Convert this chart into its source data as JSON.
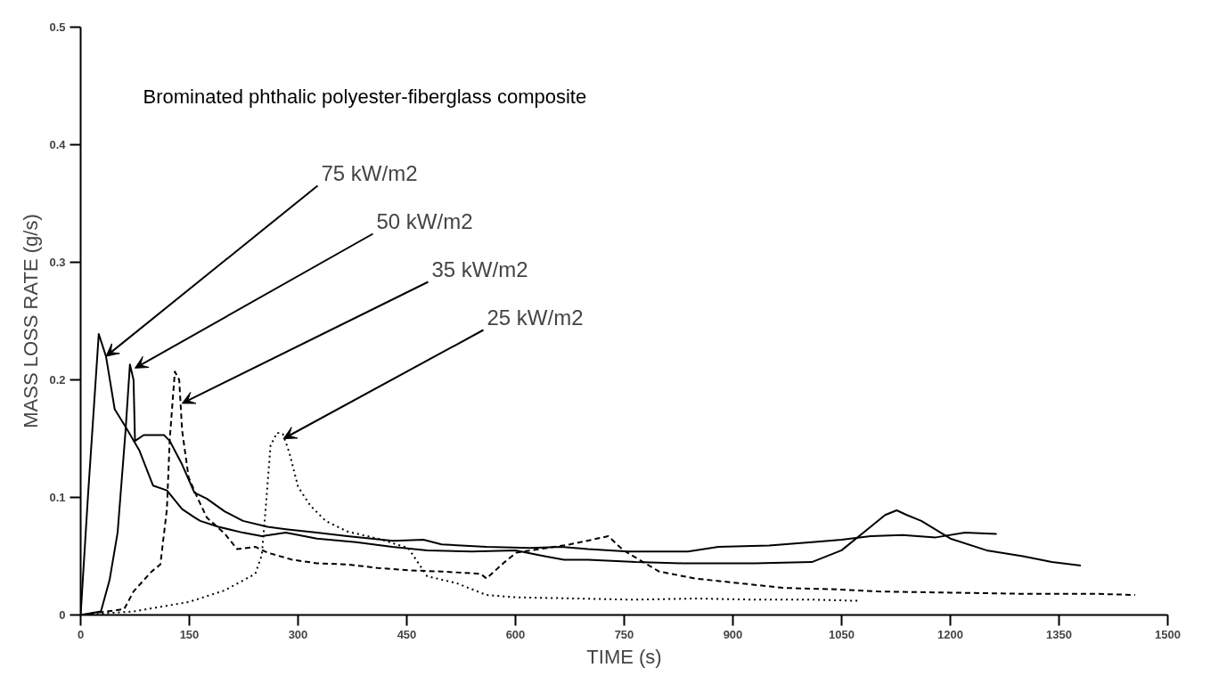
{
  "chart_data": {
    "type": "line",
    "title": "Brominated phthalic polyester-fiberglass composite",
    "xlabel": "TIME (s)",
    "ylabel": "MASS LOSS RATE (g/s)",
    "xlim": [
      0,
      1500
    ],
    "xticks": [
      0,
      150,
      300,
      450,
      600,
      750,
      900,
      1050,
      1200,
      1350,
      1500
    ],
    "ylim": [
      0,
      0.5
    ],
    "yticks": [
      0,
      0.1,
      0.2,
      0.3,
      0.4,
      0.5
    ],
    "grid": false,
    "marker": "none",
    "series": [
      {
        "color": "#000000",
        "line_style": "solid",
        "x": [
          0,
          10,
          25,
          35,
          47,
          62,
          81,
          100,
          119,
          140,
          157,
          165,
          190,
          224,
          250,
          283,
          326,
          380,
          430,
          478,
          540,
          600,
          640,
          667,
          700,
          766,
          830,
          930,
          1009,
          1050,
          1090,
          1110,
          1126,
          1140,
          1160,
          1200,
          1250,
          1300,
          1340,
          1380
        ],
        "values": [
          0,
          0.1,
          0.239,
          0.22,
          0.175,
          0.16,
          0.14,
          0.11,
          0.106,
          0.09,
          0.083,
          0.08,
          0.075,
          0.07,
          0.067,
          0.07,
          0.065,
          0.062,
          0.058,
          0.055,
          0.054,
          0.055,
          0.05,
          0.047,
          0.047,
          0.045,
          0.044,
          0.044,
          0.045,
          0.055,
          0.075,
          0.085,
          0.089,
          0.085,
          0.08,
          0.065,
          0.055,
          0.05,
          0.045,
          0.042
        ]
      },
      {
        "color": "#000000",
        "line_style": "solid",
        "x": [
          0,
          28,
          40,
          51,
          62,
          68,
          73,
          75,
          87,
          115,
          123,
          140,
          157,
          174,
          199,
          224,
          258,
          283,
          326,
          368,
          431,
          473,
          498,
          560,
          620,
          663,
          700,
          755,
          838,
          880,
          950,
          1009,
          1050,
          1090,
          1134,
          1180,
          1220,
          1264
        ],
        "values": [
          0,
          0.003,
          0.03,
          0.07,
          0.157,
          0.213,
          0.2,
          0.148,
          0.153,
          0.153,
          0.148,
          0.128,
          0.104,
          0.099,
          0.088,
          0.08,
          0.075,
          0.073,
          0.07,
          0.067,
          0.063,
          0.064,
          0.06,
          0.058,
          0.057,
          0.058,
          0.056,
          0.054,
          0.054,
          0.058,
          0.059,
          0.062,
          0.064,
          0.067,
          0.068,
          0.066,
          0.07,
          0.069
        ]
      },
      {
        "color": "#000000",
        "line_style": "dashed",
        "x": [
          0,
          60,
          73,
          98,
          110,
          119,
          123,
          130,
          136,
          140,
          149,
          161,
          174,
          199,
          216,
          241,
          258,
          292,
          326,
          368,
          410,
          452,
          498,
          552,
          560,
          585,
          601,
          675,
          728,
          749,
          798,
          848,
          909,
          971,
          1033,
          1100,
          1200,
          1300,
          1400,
          1455
        ],
        "values": [
          0,
          0.005,
          0.02,
          0.037,
          0.043,
          0.09,
          0.15,
          0.207,
          0.2,
          0.157,
          0.117,
          0.1,
          0.083,
          0.069,
          0.056,
          0.058,
          0.053,
          0.047,
          0.044,
          0.043,
          0.04,
          0.038,
          0.037,
          0.035,
          0.031,
          0.045,
          0.053,
          0.06,
          0.067,
          0.055,
          0.037,
          0.031,
          0.027,
          0.023,
          0.022,
          0.02,
          0.019,
          0.018,
          0.018,
          0.017
        ]
      },
      {
        "color": "#000000",
        "line_style": "dotted",
        "x": [
          0,
          73,
          149,
          199,
          241,
          250,
          256,
          262,
          271,
          279,
          288,
          300,
          317,
          338,
          368,
          410,
          452,
          478,
          519,
          560,
          601,
          684,
          760,
          850,
          930,
          1013,
          1075
        ],
        "values": [
          0,
          0.003,
          0.011,
          0.021,
          0.035,
          0.051,
          0.096,
          0.144,
          0.155,
          0.154,
          0.138,
          0.109,
          0.093,
          0.08,
          0.071,
          0.065,
          0.057,
          0.033,
          0.027,
          0.017,
          0.015,
          0.014,
          0.013,
          0.014,
          0.013,
          0.013,
          0.012
        ]
      }
    ],
    "annotations": [
      {
        "text": "75 kW/m2",
        "x": 35,
        "y": 0.22
      },
      {
        "text": "50 kW/m2",
        "x": 75,
        "y": 0.21
      },
      {
        "text": "35 kW/m2",
        "x": 140,
        "y": 0.18
      },
      {
        "text": "25 kW/m2",
        "x": 280,
        "y": 0.15
      }
    ]
  }
}
